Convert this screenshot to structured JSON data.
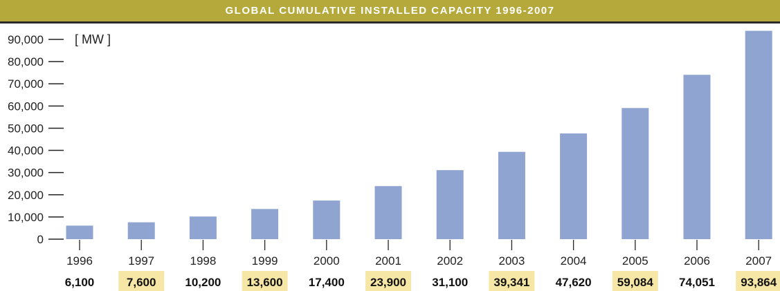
{
  "header": {
    "title": "GLOBAL CUMULATIVE INSTALLED CAPACITY 1996-2007"
  },
  "colors": {
    "title_bar": "#b4a93a",
    "bar": "#8fa4d1",
    "highlight": "#f6e7a6",
    "text": "#222222"
  },
  "chart_data": {
    "type": "bar",
    "title": "GLOBAL CUMULATIVE INSTALLED CAPACITY 1996-2007",
    "unit_label": "[ MW ]",
    "categories": [
      "1996",
      "1997",
      "1998",
      "1999",
      "2000",
      "2001",
      "2002",
      "2003",
      "2004",
      "2005",
      "2006",
      "2007"
    ],
    "values": [
      6100,
      7600,
      10200,
      13600,
      17400,
      23900,
      31100,
      39341,
      47620,
      59084,
      74051,
      93864
    ],
    "value_labels": [
      "6,100",
      "7,600",
      "10,200",
      "13,600",
      "17,400",
      "23,900",
      "31,100",
      "39,341",
      "47,620",
      "59,084",
      "74,051",
      "93,864"
    ],
    "highlighted": [
      false,
      true,
      false,
      true,
      false,
      true,
      false,
      true,
      false,
      true,
      false,
      true
    ],
    "yticks": [
      0,
      10000,
      20000,
      30000,
      40000,
      50000,
      60000,
      70000,
      80000,
      90000
    ],
    "ytick_labels": [
      "0",
      "10,000",
      "20,000",
      "30,000",
      "40,000",
      "50,000",
      "60,000",
      "70,000",
      "80,000",
      "90,000"
    ],
    "ylim": [
      0,
      90000
    ],
    "xlabel": "",
    "ylabel": "",
    "grid": false,
    "legend": "none"
  }
}
